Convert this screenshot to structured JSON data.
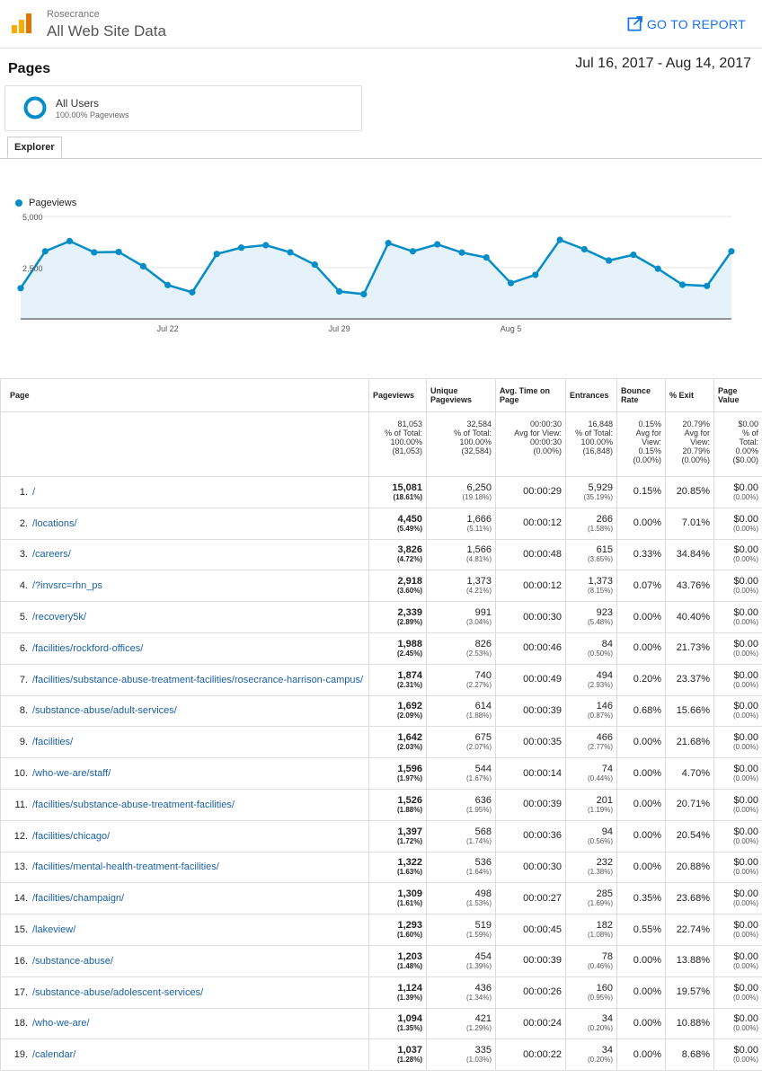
{
  "header": {
    "org": "Rosecrance",
    "property": "All Web Site Data",
    "go_to_report": "GO TO REPORT",
    "logo_icon": "analytics-logo-icon",
    "report_icon": "external-link-icon"
  },
  "report": {
    "title": "Pages",
    "date_range": "Jul 16, 2017 - Aug 14, 2017"
  },
  "segment": {
    "name": "All Users",
    "sub": "100.00% Pageviews",
    "color": "#058dc7"
  },
  "tabs": [
    {
      "label": "Explorer"
    }
  ],
  "chart_data": {
    "type": "area",
    "title": "",
    "legend": "Pageviews",
    "color": "#058dc7",
    "y_ticks": [
      "5,000",
      "2,500"
    ],
    "ylim": [
      0,
      5000
    ],
    "x_ticks": [
      "Jul 22",
      "Jul 29",
      "Aug 5"
    ],
    "x": [
      "Jul 16",
      "Jul 17",
      "Jul 18",
      "Jul 19",
      "Jul 20",
      "Jul 21",
      "Jul 22",
      "Jul 23",
      "Jul 24",
      "Jul 25",
      "Jul 26",
      "Jul 27",
      "Jul 28",
      "Jul 29",
      "Jul 30",
      "Jul 31",
      "Aug 1",
      "Aug 2",
      "Aug 3",
      "Aug 4",
      "Aug 5",
      "Aug 6",
      "Aug 7",
      "Aug 8",
      "Aug 9",
      "Aug 10",
      "Aug 11",
      "Aug 12",
      "Aug 13",
      "Aug 14"
    ],
    "values": [
      1500,
      3300,
      3800,
      3250,
      3270,
      2570,
      1650,
      1300,
      3170,
      3480,
      3600,
      3250,
      2650,
      1340,
      1210,
      3700,
      3300,
      3640,
      3240,
      3000,
      1750,
      2150,
      3860,
      3400,
      2850,
      3130,
      2450,
      1670,
      1610,
      3300
    ]
  },
  "table": {
    "headers": [
      "Page",
      "Pageviews",
      "Unique Pageviews",
      "Avg. Time on Page",
      "Entrances",
      "Bounce Rate",
      "% Exit",
      "Page Value"
    ],
    "totals": [
      [
        "81,053",
        "% of Total:",
        "100.00%",
        "(81,053)"
      ],
      [
        "32,584",
        "% of Total:",
        "100.00%",
        "(32,584)"
      ],
      [
        "00:00:30",
        "Avg for View:",
        "00:00:30",
        "(0.00%)"
      ],
      [
        "16,848",
        "% of Total:",
        "100.00%",
        "(16,848)"
      ],
      [
        "0.15%",
        "Avg for",
        "View:",
        "0.15%",
        "(0.00%)"
      ],
      [
        "20.79%",
        "Avg for",
        "View:",
        "20.79%",
        "(0.00%)"
      ],
      [
        "$0.00",
        "% of",
        "Total:",
        "0.00%",
        "($0.00)"
      ]
    ],
    "rows": [
      {
        "idx": "1.",
        "page": "/",
        "pv": "15,081",
        "pv_pct": "(18.61%)",
        "upv": "6,250",
        "upv_pct": "(19.18%)",
        "time": "00:00:29",
        "ent": "5,929",
        "ent_pct": "(35.19%)",
        "bounce": "0.15%",
        "exit": "20.85%",
        "value": "$0.00",
        "value_pct": "(0.00%)"
      },
      {
        "idx": "2.",
        "page": "/locations/",
        "pv": "4,450",
        "pv_pct": "(5.49%)",
        "upv": "1,666",
        "upv_pct": "(5.11%)",
        "time": "00:00:12",
        "ent": "266",
        "ent_pct": "(1.58%)",
        "bounce": "0.00%",
        "exit": "7.01%",
        "value": "$0.00",
        "value_pct": "(0.00%)"
      },
      {
        "idx": "3.",
        "page": "/careers/",
        "pv": "3,826",
        "pv_pct": "(4.72%)",
        "upv": "1,566",
        "upv_pct": "(4.81%)",
        "time": "00:00:48",
        "ent": "615",
        "ent_pct": "(3.65%)",
        "bounce": "0.33%",
        "exit": "34.84%",
        "value": "$0.00",
        "value_pct": "(0.00%)"
      },
      {
        "idx": "4.",
        "page": "/?invsrc=rhn_ps",
        "pv": "2,918",
        "pv_pct": "(3.60%)",
        "upv": "1,373",
        "upv_pct": "(4.21%)",
        "time": "00:00:12",
        "ent": "1,373",
        "ent_pct": "(8.15%)",
        "bounce": "0.07%",
        "exit": "43.76%",
        "value": "$0.00",
        "value_pct": "(0.00%)"
      },
      {
        "idx": "5.",
        "page": "/recovery5k/",
        "pv": "2,339",
        "pv_pct": "(2.89%)",
        "upv": "991",
        "upv_pct": "(3.04%)",
        "time": "00:00:30",
        "ent": "923",
        "ent_pct": "(5.48%)",
        "bounce": "0.00%",
        "exit": "40.40%",
        "value": "$0.00",
        "value_pct": "(0.00%)"
      },
      {
        "idx": "6.",
        "page": "/facilities/rockford-offices/",
        "pv": "1,988",
        "pv_pct": "(2.45%)",
        "upv": "826",
        "upv_pct": "(2.53%)",
        "time": "00:00:46",
        "ent": "84",
        "ent_pct": "(0.50%)",
        "bounce": "0.00%",
        "exit": "21.73%",
        "value": "$0.00",
        "value_pct": "(0.00%)"
      },
      {
        "idx": "7.",
        "page": "/facilities/substance-abuse-treatment-facilities/rosecrance-harrison-campus/",
        "pv": "1,874",
        "pv_pct": "(2.31%)",
        "upv": "740",
        "upv_pct": "(2.27%)",
        "time": "00:00:49",
        "ent": "494",
        "ent_pct": "(2.93%)",
        "bounce": "0.20%",
        "exit": "23.37%",
        "value": "$0.00",
        "value_pct": "(0.00%)"
      },
      {
        "idx": "8.",
        "page": "/substance-abuse/adult-services/",
        "pv": "1,692",
        "pv_pct": "(2.09%)",
        "upv": "614",
        "upv_pct": "(1.88%)",
        "time": "00:00:39",
        "ent": "146",
        "ent_pct": "(0.87%)",
        "bounce": "0.68%",
        "exit": "15.66%",
        "value": "$0.00",
        "value_pct": "(0.00%)"
      },
      {
        "idx": "9.",
        "page": "/facilities/",
        "pv": "1,642",
        "pv_pct": "(2.03%)",
        "upv": "675",
        "upv_pct": "(2.07%)",
        "time": "00:00:35",
        "ent": "466",
        "ent_pct": "(2.77%)",
        "bounce": "0.00%",
        "exit": "21.68%",
        "value": "$0.00",
        "value_pct": "(0.00%)"
      },
      {
        "idx": "10.",
        "page": "/who-we-are/staff/",
        "pv": "1,596",
        "pv_pct": "(1.97%)",
        "upv": "544",
        "upv_pct": "(1.67%)",
        "time": "00:00:14",
        "ent": "74",
        "ent_pct": "(0.44%)",
        "bounce": "0.00%",
        "exit": "4.70%",
        "value": "$0.00",
        "value_pct": "(0.00%)"
      },
      {
        "idx": "11.",
        "page": "/facilities/substance-abuse-treatment-facilities/",
        "pv": "1,526",
        "pv_pct": "(1.88%)",
        "upv": "636",
        "upv_pct": "(1.95%)",
        "time": "00:00:39",
        "ent": "201",
        "ent_pct": "(1.19%)",
        "bounce": "0.00%",
        "exit": "20.71%",
        "value": "$0.00",
        "value_pct": "(0.00%)"
      },
      {
        "idx": "12.",
        "page": "/facilities/chicago/",
        "pv": "1,397",
        "pv_pct": "(1.72%)",
        "upv": "568",
        "upv_pct": "(1.74%)",
        "time": "00:00:36",
        "ent": "94",
        "ent_pct": "(0.56%)",
        "bounce": "0.00%",
        "exit": "20.54%",
        "value": "$0.00",
        "value_pct": "(0.00%)"
      },
      {
        "idx": "13.",
        "page": "/facilities/mental-health-treatment-facilities/",
        "pv": "1,322",
        "pv_pct": "(1.63%)",
        "upv": "536",
        "upv_pct": "(1.64%)",
        "time": "00:00:30",
        "ent": "232",
        "ent_pct": "(1.38%)",
        "bounce": "0.00%",
        "exit": "20.88%",
        "value": "$0.00",
        "value_pct": "(0.00%)"
      },
      {
        "idx": "14.",
        "page": "/facilities/champaign/",
        "pv": "1,309",
        "pv_pct": "(1.61%)",
        "upv": "498",
        "upv_pct": "(1.53%)",
        "time": "00:00:27",
        "ent": "285",
        "ent_pct": "(1.69%)",
        "bounce": "0.35%",
        "exit": "23.68%",
        "value": "$0.00",
        "value_pct": "(0.00%)"
      },
      {
        "idx": "15.",
        "page": "/lakeview/",
        "pv": "1,293",
        "pv_pct": "(1.60%)",
        "upv": "519",
        "upv_pct": "(1.59%)",
        "time": "00:00:45",
        "ent": "182",
        "ent_pct": "(1.08%)",
        "bounce": "0.55%",
        "exit": "22.74%",
        "value": "$0.00",
        "value_pct": "(0.00%)"
      },
      {
        "idx": "16.",
        "page": "/substance-abuse/",
        "pv": "1,203",
        "pv_pct": "(1.48%)",
        "upv": "454",
        "upv_pct": "(1.39%)",
        "time": "00:00:39",
        "ent": "78",
        "ent_pct": "(0.46%)",
        "bounce": "0.00%",
        "exit": "13.88%",
        "value": "$0.00",
        "value_pct": "(0.00%)"
      },
      {
        "idx": "17.",
        "page": "/substance-abuse/adolescent-services/",
        "pv": "1,124",
        "pv_pct": "(1.39%)",
        "upv": "436",
        "upv_pct": "(1.34%)",
        "time": "00:00:26",
        "ent": "160",
        "ent_pct": "(0.95%)",
        "bounce": "0.00%",
        "exit": "19.57%",
        "value": "$0.00",
        "value_pct": "(0.00%)"
      },
      {
        "idx": "18.",
        "page": "/who-we-are/",
        "pv": "1,094",
        "pv_pct": "(1.35%)",
        "upv": "421",
        "upv_pct": "(1.29%)",
        "time": "00:00:24",
        "ent": "34",
        "ent_pct": "(0.20%)",
        "bounce": "0.00%",
        "exit": "10.88%",
        "value": "$0.00",
        "value_pct": "(0.00%)"
      },
      {
        "idx": "19.",
        "page": "/calendar/",
        "pv": "1,037",
        "pv_pct": "(1.28%)",
        "upv": "335",
        "upv_pct": "(1.03%)",
        "time": "00:00:22",
        "ent": "34",
        "ent_pct": "(0.20%)",
        "bounce": "0.00%",
        "exit": "8.68%",
        "value": "$0.00",
        "value_pct": "(0.00%)"
      }
    ]
  }
}
